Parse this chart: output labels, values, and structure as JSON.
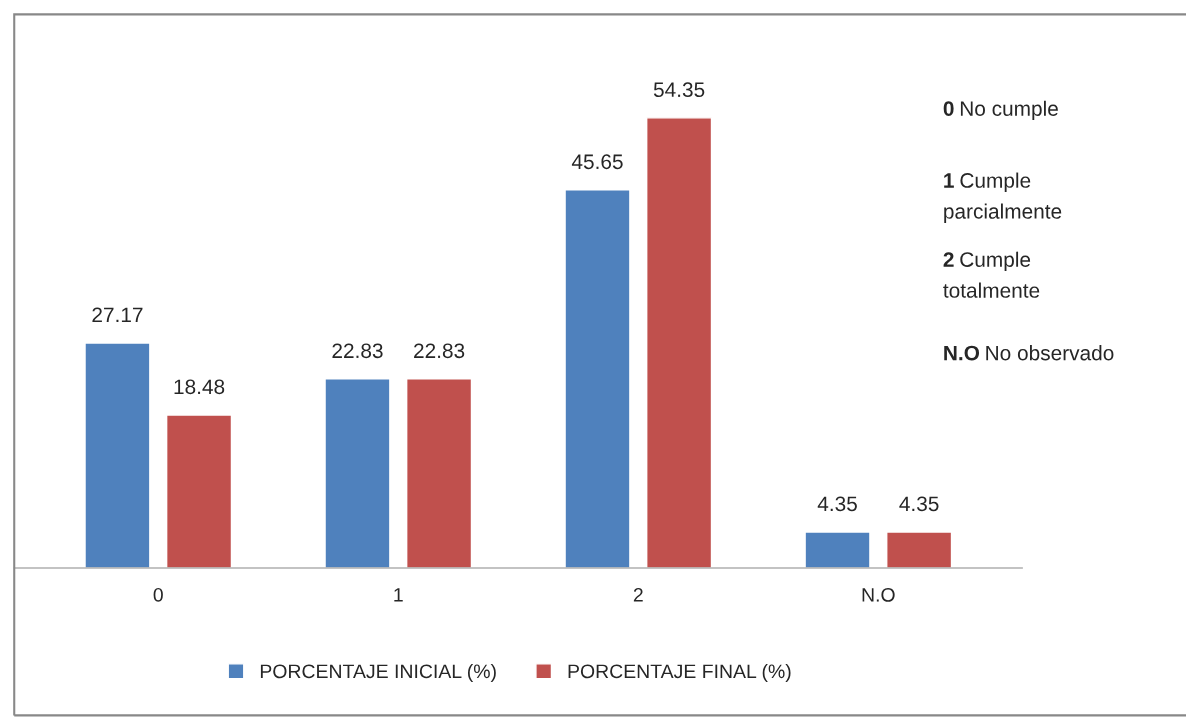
{
  "chart_data": {
    "type": "bar",
    "categories": [
      "0",
      "1",
      "2",
      "N.O"
    ],
    "series": [
      {
        "name": "PORCENTAJE INICIAL (%)",
        "color": "#4f81bd",
        "values": [
          27.17,
          22.83,
          45.65,
          4.35
        ]
      },
      {
        "name": "PORCENTAJE FINAL (%)",
        "color": "#c0504d",
        "values": [
          18.48,
          22.83,
          54.35,
          4.35
        ]
      }
    ],
    "data_labels": true,
    "legend": "bottom",
    "annotations": [
      "0 No cumple",
      "1 Cumple\nparcialmente",
      "2 Cumple\ntotalmente",
      "N.O No observado"
    ]
  }
}
